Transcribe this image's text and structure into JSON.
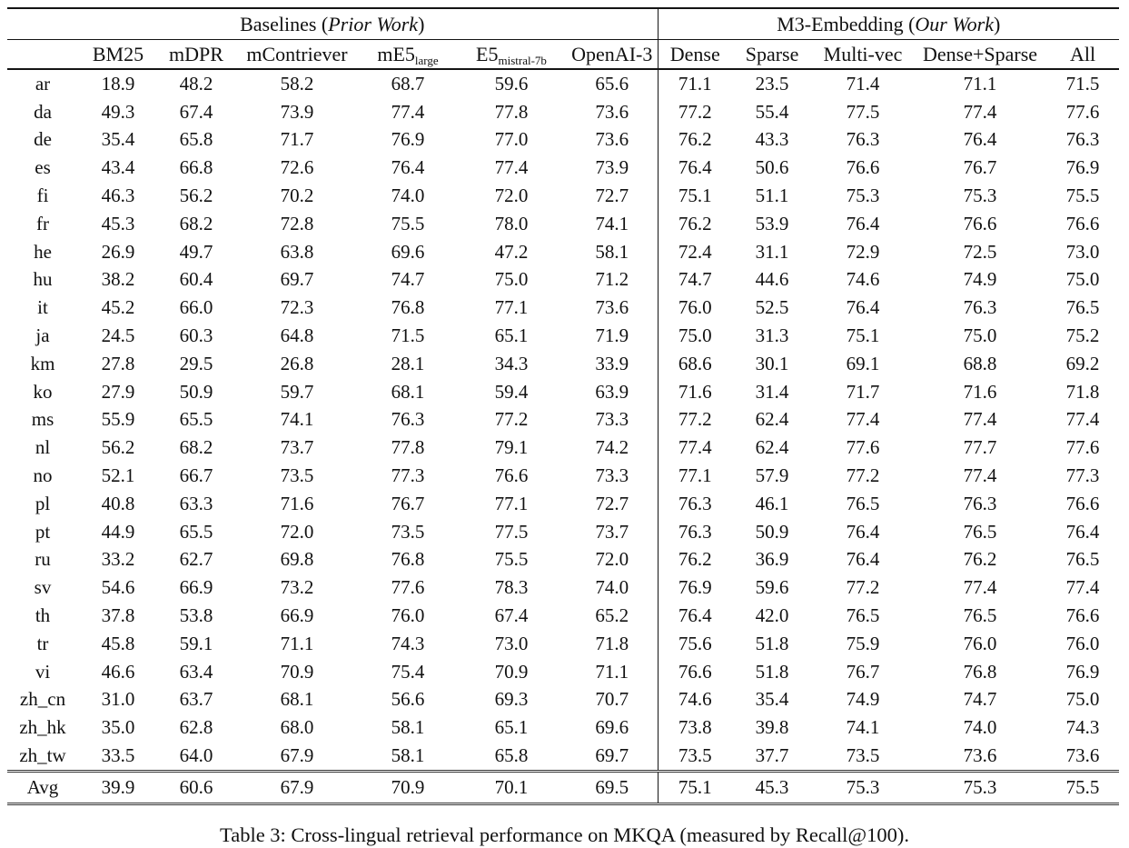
{
  "table": {
    "groups": [
      {
        "title_pre": "Baselines (",
        "title_italic": "Prior Work",
        "title_post": ")"
      },
      {
        "title_pre": "M3-Embedding (",
        "title_italic": "Our Work",
        "title_post": ")"
      }
    ],
    "columns": [
      {
        "label": "BM25",
        "sub": ""
      },
      {
        "label": "mDPR",
        "sub": ""
      },
      {
        "label": "mContriever",
        "sub": ""
      },
      {
        "label": "mE5",
        "sub": "large"
      },
      {
        "label": "E5",
        "sub": "mistral-7b"
      },
      {
        "label": "OpenAI-3",
        "sub": ""
      },
      {
        "label": "Dense",
        "sub": ""
      },
      {
        "label": "Sparse",
        "sub": ""
      },
      {
        "label": "Multi-vec",
        "sub": ""
      },
      {
        "label": "Dense+Sparse",
        "sub": ""
      },
      {
        "label": "All",
        "sub": ""
      }
    ],
    "rows": [
      {
        "lang": "ar",
        "values": [
          "18.9",
          "48.2",
          "58.2",
          "68.7",
          "59.6",
          "65.6",
          "71.1",
          "23.5",
          "71.4",
          "71.1",
          "71.5"
        ],
        "bold": [
          10
        ],
        "avg": false
      },
      {
        "lang": "da",
        "values": [
          "49.3",
          "67.4",
          "73.9",
          "77.4",
          "77.8",
          "73.6",
          "77.2",
          "55.4",
          "77.5",
          "77.4",
          "77.6"
        ],
        "bold": [
          4
        ],
        "avg": false
      },
      {
        "lang": "de",
        "values": [
          "35.4",
          "65.8",
          "71.7",
          "76.9",
          "77.0",
          "73.6",
          "76.2",
          "43.3",
          "76.3",
          "76.4",
          "76.3"
        ],
        "bold": [
          4
        ],
        "avg": false
      },
      {
        "lang": "es",
        "values": [
          "43.4",
          "66.8",
          "72.6",
          "76.4",
          "77.4",
          "73.9",
          "76.4",
          "50.6",
          "76.6",
          "76.7",
          "76.9"
        ],
        "bold": [
          4
        ],
        "avg": false
      },
      {
        "lang": "fi",
        "values": [
          "46.3",
          "56.2",
          "70.2",
          "74.0",
          "72.0",
          "72.7",
          "75.1",
          "51.1",
          "75.3",
          "75.3",
          "75.5"
        ],
        "bold": [
          10
        ],
        "avg": false
      },
      {
        "lang": "fr",
        "values": [
          "45.3",
          "68.2",
          "72.8",
          "75.5",
          "78.0",
          "74.1",
          "76.2",
          "53.9",
          "76.4",
          "76.6",
          "76.6"
        ],
        "bold": [
          4
        ],
        "avg": false
      },
      {
        "lang": "he",
        "values": [
          "26.9",
          "49.7",
          "63.8",
          "69.6",
          "47.2",
          "58.1",
          "72.4",
          "31.1",
          "72.9",
          "72.5",
          "73.0"
        ],
        "bold": [
          10
        ],
        "avg": false
      },
      {
        "lang": "hu",
        "values": [
          "38.2",
          "60.4",
          "69.7",
          "74.7",
          "75.0",
          "71.2",
          "74.7",
          "44.6",
          "74.6",
          "74.9",
          "75.0"
        ],
        "bold": [
          4,
          10
        ],
        "avg": false
      },
      {
        "lang": "it",
        "values": [
          "45.2",
          "66.0",
          "72.3",
          "76.8",
          "77.1",
          "73.6",
          "76.0",
          "52.5",
          "76.4",
          "76.3",
          "76.5"
        ],
        "bold": [
          4
        ],
        "avg": false
      },
      {
        "lang": "ja",
        "values": [
          "24.5",
          "60.3",
          "64.8",
          "71.5",
          "65.1",
          "71.9",
          "75.0",
          "31.3",
          "75.1",
          "75.0",
          "75.2"
        ],
        "bold": [
          10
        ],
        "avg": false
      },
      {
        "lang": "km",
        "values": [
          "27.8",
          "29.5",
          "26.8",
          "28.1",
          "34.3",
          "33.9",
          "68.6",
          "30.1",
          "69.1",
          "68.8",
          "69.2"
        ],
        "bold": [
          10
        ],
        "avg": false
      },
      {
        "lang": "ko",
        "values": [
          "27.9",
          "50.9",
          "59.7",
          "68.1",
          "59.4",
          "63.9",
          "71.6",
          "31.4",
          "71.7",
          "71.6",
          "71.8"
        ],
        "bold": [
          10
        ],
        "avg": false
      },
      {
        "lang": "ms",
        "values": [
          "55.9",
          "65.5",
          "74.1",
          "76.3",
          "77.2",
          "73.3",
          "77.2",
          "62.4",
          "77.4",
          "77.4",
          "77.4"
        ],
        "bold": [
          8,
          9,
          10
        ],
        "avg": false
      },
      {
        "lang": "nl",
        "values": [
          "56.2",
          "68.2",
          "73.7",
          "77.8",
          "79.1",
          "74.2",
          "77.4",
          "62.4",
          "77.6",
          "77.7",
          "77.6"
        ],
        "bold": [
          4
        ],
        "avg": false
      },
      {
        "lang": "no",
        "values": [
          "52.1",
          "66.7",
          "73.5",
          "77.3",
          "76.6",
          "73.3",
          "77.1",
          "57.9",
          "77.2",
          "77.4",
          "77.3"
        ],
        "bold": [
          9
        ],
        "avg": false
      },
      {
        "lang": "pl",
        "values": [
          "40.8",
          "63.3",
          "71.6",
          "76.7",
          "77.1",
          "72.7",
          "76.3",
          "46.1",
          "76.5",
          "76.3",
          "76.6"
        ],
        "bold": [
          4
        ],
        "avg": false
      },
      {
        "lang": "pt",
        "values": [
          "44.9",
          "65.5",
          "72.0",
          "73.5",
          "77.5",
          "73.7",
          "76.3",
          "50.9",
          "76.4",
          "76.5",
          "76.4"
        ],
        "bold": [
          4
        ],
        "avg": false
      },
      {
        "lang": "ru",
        "values": [
          "33.2",
          "62.7",
          "69.8",
          "76.8",
          "75.5",
          "72.0",
          "76.2",
          "36.9",
          "76.4",
          "76.2",
          "76.5"
        ],
        "bold": [
          3
        ],
        "avg": false
      },
      {
        "lang": "sv",
        "values": [
          "54.6",
          "66.9",
          "73.2",
          "77.6",
          "78.3",
          "74.0",
          "76.9",
          "59.6",
          "77.2",
          "77.4",
          "77.4"
        ],
        "bold": [
          4
        ],
        "avg": false
      },
      {
        "lang": "th",
        "values": [
          "37.8",
          "53.8",
          "66.9",
          "76.0",
          "67.4",
          "65.2",
          "76.4",
          "42.0",
          "76.5",
          "76.5",
          "76.6"
        ],
        "bold": [
          10
        ],
        "avg": false
      },
      {
        "lang": "tr",
        "values": [
          "45.8",
          "59.1",
          "71.1",
          "74.3",
          "73.0",
          "71.8",
          "75.6",
          "51.8",
          "75.9",
          "76.0",
          "76.0"
        ],
        "bold": [
          9,
          10
        ],
        "avg": false
      },
      {
        "lang": "vi",
        "values": [
          "46.6",
          "63.4",
          "70.9",
          "75.4",
          "70.9",
          "71.1",
          "76.6",
          "51.8",
          "76.7",
          "76.8",
          "76.9"
        ],
        "bold": [
          10
        ],
        "avg": false
      },
      {
        "lang": "zh_cn",
        "values": [
          "31.0",
          "63.7",
          "68.1",
          "56.6",
          "69.3",
          "70.7",
          "74.6",
          "35.4",
          "74.9",
          "74.7",
          "75.0"
        ],
        "bold": [
          10
        ],
        "avg": false
      },
      {
        "lang": "zh_hk",
        "values": [
          "35.0",
          "62.8",
          "68.0",
          "58.1",
          "65.1",
          "69.6",
          "73.8",
          "39.8",
          "74.1",
          "74.0",
          "74.3"
        ],
        "bold": [
          10
        ],
        "avg": false
      },
      {
        "lang": "zh_tw",
        "values": [
          "33.5",
          "64.0",
          "67.9",
          "58.1",
          "65.8",
          "69.7",
          "73.5",
          "37.7",
          "73.5",
          "73.6",
          "73.6"
        ],
        "bold": [
          9,
          10
        ],
        "avg": false
      },
      {
        "lang": "Avg",
        "values": [
          "39.9",
          "60.6",
          "67.9",
          "70.9",
          "70.1",
          "69.5",
          "75.1",
          "45.3",
          "75.3",
          "75.3",
          "75.5"
        ],
        "bold": [
          10
        ],
        "avg": true
      }
    ]
  },
  "caption": "Table 3: Cross-lingual retrieval performance on MKQA (measured by Recall@100)."
}
